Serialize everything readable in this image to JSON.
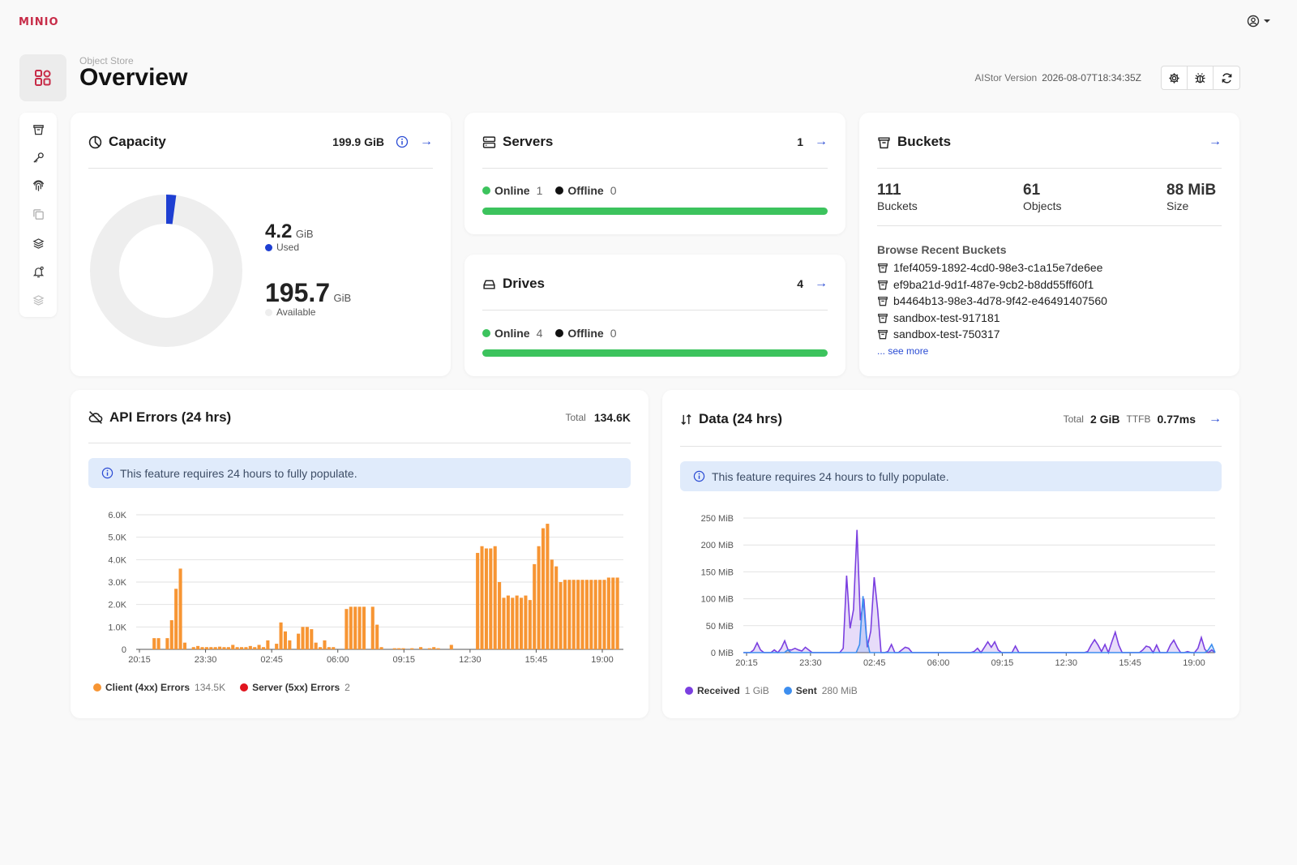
{
  "app": {
    "logo_text": "MINIO",
    "user_icon": "user-circle-icon"
  },
  "header": {
    "breadcrumb": "Object Store",
    "title": "Overview",
    "version_label": "AIStor Version",
    "version_value": "2026-08-07T18:34:35Z",
    "buttons": [
      "settings-icon",
      "bug-icon",
      "refresh-icon"
    ]
  },
  "sidebar": {
    "items": [
      "bucket-icon",
      "key-icon",
      "fingerprint-icon",
      "copy-icon",
      "layers-icon",
      "bell-icon",
      "stack-icon"
    ]
  },
  "capacity": {
    "title": "Capacity",
    "total": "199.9 GiB",
    "used_value": "4.2",
    "used_unit": "GiB",
    "used_label": "Used",
    "available_value": "195.7",
    "available_unit": "GiB",
    "available_label": "Available",
    "used_fraction": 0.021,
    "used_color": "#1e3fd2",
    "ring_color": "#eeeeee"
  },
  "servers": {
    "title": "Servers",
    "count": "1",
    "online_label": "Online",
    "online_value": "1",
    "offline_label": "Offline",
    "offline_value": "0"
  },
  "drives": {
    "title": "Drives",
    "count": "4",
    "online_label": "Online",
    "online_value": "4",
    "offline_label": "Offline",
    "offline_value": "0"
  },
  "buckets": {
    "title": "Buckets",
    "stats": [
      {
        "value": "111",
        "label": "Buckets"
      },
      {
        "value": "61",
        "label": "Objects"
      },
      {
        "value": "88 MiB",
        "label": "Size"
      }
    ],
    "recent_title": "Browse Recent Buckets",
    "recent": [
      "1fef4059-1892-4cd0-98e3-c1a15e7de6ee",
      "ef9ba21d-9d1f-487e-9cb2-b8dd55ff60f1",
      "b4464b13-98e3-4d78-9f42-e46491407560",
      "sandbox-test-917181",
      "sandbox-test-750317"
    ],
    "see_more": "... see more"
  },
  "api_errors": {
    "title": "API Errors (24 hrs)",
    "total_label": "Total",
    "total_value": "134.6K",
    "notice": "This feature requires 24 hours to fully populate.",
    "legend": [
      {
        "name": "Client (4xx) Errors",
        "value": "134.5K",
        "color": "#f79533"
      },
      {
        "name": "Server (5xx) Errors",
        "value": "2",
        "color": "#e0141e"
      }
    ]
  },
  "data_transfer": {
    "title": "Data (24 hrs)",
    "total_label": "Total",
    "total_value": "2 GiB",
    "ttfb_label": "TTFB",
    "ttfb_value": "0.77ms",
    "notice": "This feature requires 24 hours to fully populate.",
    "legend": [
      {
        "name": "Received",
        "value": "1 GiB",
        "color": "#7b3fe0"
      },
      {
        "name": "Sent",
        "value": "280 MiB",
        "color": "#3d8eef"
      }
    ]
  },
  "chart_data": [
    {
      "type": "bar",
      "title": "",
      "x_ticks": [
        "20:15",
        "23:30",
        "02:45",
        "06:00",
        "09:15",
        "12:30",
        "15:45",
        "19:00"
      ],
      "y_ticks": [
        "0",
        "1.0K",
        "2.0K",
        "3.0K",
        "4.0K",
        "5.0K",
        "6.0K"
      ],
      "ylim": [
        0,
        6000
      ],
      "grid": true,
      "series": [
        {
          "name": "Client (4xx) Errors",
          "color": "#f79533",
          "values": [
            0,
            0,
            0,
            500,
            500,
            0,
            500,
            1300,
            2700,
            3600,
            300,
            0,
            100,
            150,
            100,
            100,
            100,
            100,
            120,
            100,
            100,
            200,
            100,
            100,
            100,
            150,
            100,
            200,
            100,
            400,
            0,
            250,
            1200,
            800,
            400,
            0,
            700,
            1000,
            1000,
            900,
            300,
            100,
            400,
            100,
            100,
            0,
            0,
            1800,
            1900,
            1900,
            1900,
            1900,
            0,
            1900,
            1100,
            100,
            0,
            0,
            50,
            50,
            50,
            0,
            50,
            0,
            100,
            0,
            50,
            100,
            50,
            0,
            0,
            200,
            0,
            0,
            0,
            0,
            0,
            4300,
            4600,
            4500,
            4500,
            4600,
            3000,
            2300,
            2400,
            2300,
            2400,
            2300,
            2400,
            2200,
            3800,
            4600,
            5400,
            5600,
            4000,
            3700,
            3000,
            3100,
            3100,
            3100,
            3100,
            3100,
            3100,
            3100,
            3100,
            3100,
            3100,
            3200,
            3200,
            3200
          ]
        },
        {
          "name": "Server (5xx) Errors",
          "color": "#e0141e",
          "values": []
        }
      ]
    },
    {
      "type": "area",
      "title": "",
      "x_ticks": [
        "20:15",
        "23:30",
        "02:45",
        "06:00",
        "09:15",
        "12:30",
        "15:45",
        "19:00"
      ],
      "y_ticks": [
        "0 MiB",
        "50 MiB",
        "100 MiB",
        "150 MiB",
        "200 MiB",
        "250 MiB"
      ],
      "ylim": [
        0,
        250
      ],
      "grid": true,
      "series": [
        {
          "name": "Received",
          "color": "#7b3fe0",
          "values": [
            0,
            0,
            0,
            5,
            18,
            5,
            0,
            0,
            0,
            5,
            0,
            8,
            22,
            5,
            5,
            8,
            5,
            3,
            10,
            5,
            0,
            0,
            0,
            0,
            0,
            0,
            0,
            0,
            0,
            8,
            143,
            45,
            80,
            228,
            60,
            100,
            10,
            40,
            140,
            80,
            0,
            0,
            2,
            15,
            0,
            0,
            5,
            10,
            8,
            0,
            0,
            0,
            0,
            0,
            0,
            0,
            0,
            0,
            0,
            0,
            0,
            0,
            0,
            0,
            0,
            0,
            0,
            2,
            8,
            0,
            10,
            20,
            10,
            20,
            5,
            0,
            0,
            0,
            0,
            12,
            0,
            0,
            0,
            0,
            0,
            0,
            0,
            0,
            0,
            0,
            0,
            0,
            0,
            0,
            0,
            0,
            0,
            0,
            0,
            0,
            2,
            14,
            24,
            14,
            2,
            15,
            0,
            20,
            38,
            14,
            0,
            0,
            0,
            0,
            0,
            0,
            5,
            12,
            10,
            0,
            14,
            0,
            0,
            0,
            14,
            23,
            10,
            0,
            0,
            2,
            0,
            0,
            8,
            28,
            6,
            0,
            5,
            0
          ]
        },
        {
          "name": "Sent",
          "color": "#3d8eef",
          "values": [
            0,
            0,
            0,
            0,
            0,
            0,
            0,
            0,
            0,
            0,
            0,
            0,
            0,
            5,
            0,
            0,
            0,
            0,
            0,
            0,
            0,
            0,
            0,
            0,
            0,
            0,
            0,
            0,
            0,
            0,
            0,
            0,
            0,
            0,
            15,
            105,
            30,
            0,
            0,
            0,
            0,
            0,
            0,
            0,
            0,
            0,
            0,
            0,
            0,
            0,
            0,
            0,
            0,
            0,
            0,
            0,
            0,
            0,
            0,
            0,
            0,
            0,
            0,
            0,
            0,
            0,
            0,
            0,
            0,
            0,
            0,
            0,
            0,
            0,
            0,
            0,
            0,
            0,
            0,
            0,
            0,
            0,
            0,
            0,
            0,
            0,
            0,
            0,
            0,
            0,
            0,
            0,
            0,
            0,
            0,
            0,
            0,
            0,
            0,
            0,
            0,
            0,
            0,
            0,
            0,
            0,
            0,
            0,
            0,
            0,
            0,
            0,
            0,
            0,
            0,
            0,
            0,
            0,
            0,
            0,
            0,
            0,
            0,
            0,
            0,
            0,
            0,
            0,
            0,
            0,
            0,
            0,
            0,
            0,
            0,
            0,
            5,
            15,
            0
          ]
        }
      ]
    }
  ]
}
